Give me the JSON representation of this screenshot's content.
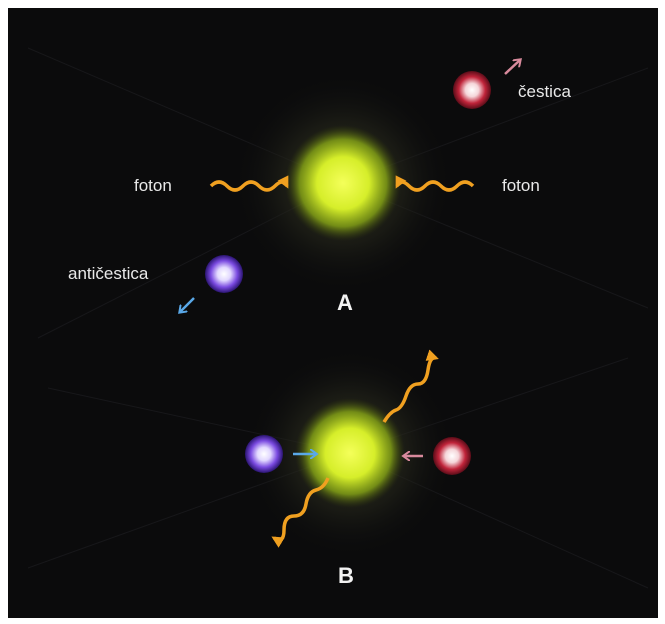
{
  "labels": {
    "particle": "čestica",
    "antiparticle": "antičestica",
    "photon_left": "foton",
    "photon_right": "foton",
    "stage_a": "A",
    "stage_b": "B"
  },
  "colors": {
    "background": "#0b0b0c",
    "glow": "#d9f23a",
    "photon": "#f0a020",
    "particle": "#c0243a",
    "antiparticle": "#7a4ae0",
    "particle_arrow": "#d88a9c",
    "antiparticle_arrow": "#5aa8e8"
  }
}
